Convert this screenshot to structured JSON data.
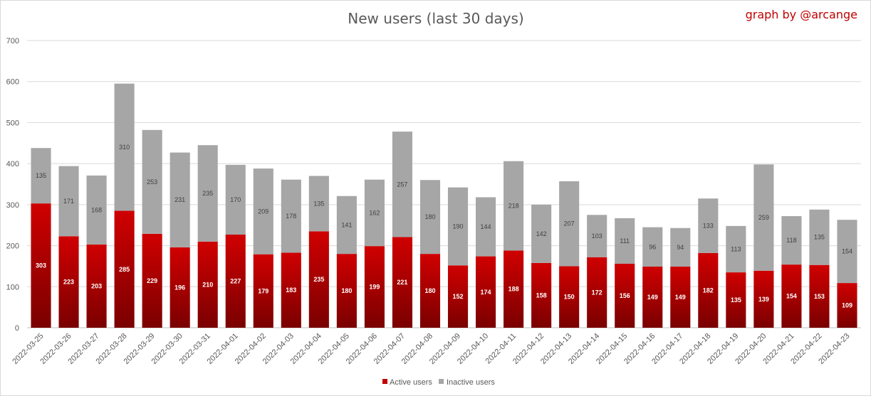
{
  "chart_data": {
    "type": "bar",
    "stacked": true,
    "title": "New users (last 30 days)",
    "credit": "graph by @arcange",
    "categories": [
      "2022-03-25",
      "2022-03-26",
      "2022-03-27",
      "2022-03-28",
      "2022-03-29",
      "2022-03-30",
      "2022-03-31",
      "2022-04-01",
      "2022-04-02",
      "2022-04-03",
      "2022-04-04",
      "2022-04-05",
      "2022-04-06",
      "2022-04-07",
      "2022-04-08",
      "2022-04-09",
      "2022-04-10",
      "2022-04-11",
      "2022-04-12",
      "2022-04-13",
      "2022-04-14",
      "2022-04-15",
      "2022-04-16",
      "2022-04-17",
      "2022-04-18",
      "2022-04-19",
      "2022-04-20",
      "2022-04-21",
      "2022-04-22",
      "2022-04-23"
    ],
    "series": [
      {
        "name": "Active users",
        "color": "#c00000",
        "values": [
          303,
          223,
          203,
          285,
          229,
          196,
          210,
          227,
          179,
          183,
          235,
          180,
          199,
          221,
          180,
          152,
          174,
          188,
          158,
          150,
          172,
          156,
          149,
          149,
          182,
          135,
          139,
          154,
          153,
          109
        ]
      },
      {
        "name": "Inactive users",
        "color": "#a6a6a6",
        "values": [
          135,
          171,
          168,
          310,
          253,
          231,
          235,
          170,
          209,
          178,
          135,
          141,
          162,
          257,
          180,
          190,
          144,
          218,
          142,
          207,
          103,
          111,
          96,
          94,
          133,
          113,
          259,
          118,
          135,
          154
        ]
      }
    ],
    "yticks": [
      "0",
      "100",
      "200",
      "300",
      "400",
      "500",
      "600",
      "700"
    ],
    "ylim": [
      0,
      700
    ],
    "xlabel": "",
    "ylabel": "",
    "grid": true,
    "legend_position": "bottom"
  }
}
